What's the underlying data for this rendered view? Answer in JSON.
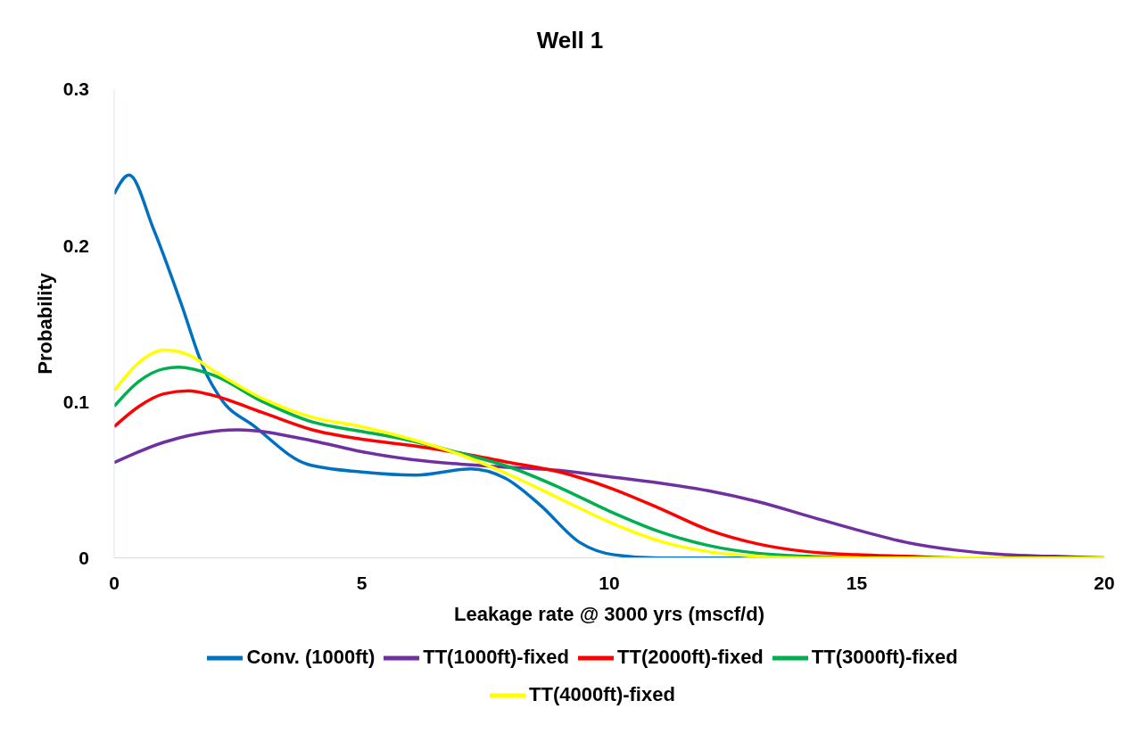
{
  "chart_data": {
    "type": "line",
    "title": "Well 1",
    "xlabel": "Leakage rate @ 3000 yrs  (mscf/d)",
    "ylabel": "Probability",
    "xlim": [
      0,
      20
    ],
    "xticks": [
      0,
      5,
      10,
      15,
      20
    ],
    "ylim": [
      0,
      0.3
    ],
    "yticks": [
      0,
      0.1,
      0.2,
      0.3
    ],
    "grid": false,
    "legend": "bottom",
    "marker": "none",
    "line_style": "solid",
    "series": [
      {
        "name": "Conv. (1000ft)",
        "color": "#0070c0",
        "x": [
          0,
          0.3,
          0.8,
          1.35,
          1.8,
          2.2,
          2.8,
          3.9,
          5,
          6.1,
          7.2,
          7.9,
          8.6,
          9.4,
          10.1,
          11,
          12,
          13
        ],
        "values": [
          0.233,
          0.245,
          0.21,
          0.163,
          0.122,
          0.1,
          0.085,
          0.06,
          0.055,
          0.053,
          0.057,
          0.051,
          0.034,
          0.01,
          0.002,
          0,
          0,
          0
        ]
      },
      {
        "name": "TT(1000ft)-fixed",
        "color": "#7030a0",
        "x": [
          0,
          1,
          2,
          2.5,
          4,
          5,
          6,
          7,
          8,
          9,
          10,
          11,
          12,
          13,
          14,
          15,
          16,
          17,
          18,
          19,
          20
        ],
        "values": [
          0.061,
          0.074,
          0.081,
          0.082,
          0.075,
          0.068,
          0.063,
          0.06,
          0.058,
          0.056,
          0.052,
          0.048,
          0.043,
          0.036,
          0.027,
          0.018,
          0.01,
          0.005,
          0.002,
          0.001,
          0
        ]
      },
      {
        "name": "TT(2000ft)-fixed",
        "color": "#ff0000",
        "x": [
          0,
          0.5,
          1,
          1.5,
          2,
          3,
          4,
          5,
          6,
          7,
          8,
          9,
          10,
          11,
          12,
          13,
          14,
          15,
          16,
          17,
          20
        ],
        "values": [
          0.084,
          0.097,
          0.105,
          0.107,
          0.104,
          0.093,
          0.082,
          0.076,
          0.072,
          0.067,
          0.061,
          0.055,
          0.045,
          0.032,
          0.018,
          0.009,
          0.004,
          0.002,
          0.001,
          0,
          0
        ]
      },
      {
        "name": "TT(3000ft)-fixed",
        "color": "#00b050",
        "x": [
          0,
          0.5,
          1,
          1.3,
          2,
          3,
          4,
          5,
          6,
          7,
          8,
          9,
          10,
          11,
          12,
          13,
          14,
          15,
          20
        ],
        "values": [
          0.097,
          0.113,
          0.121,
          0.122,
          0.117,
          0.1,
          0.087,
          0.081,
          0.075,
          0.067,
          0.058,
          0.045,
          0.03,
          0.017,
          0.008,
          0.003,
          0.001,
          0,
          0
        ]
      },
      {
        "name": "TT(4000ft)-fixed",
        "color": "#ffff00",
        "x": [
          0,
          0.5,
          1,
          1.5,
          2,
          3,
          4,
          5,
          6,
          7,
          8,
          9,
          10,
          11,
          12,
          13,
          14,
          20
        ],
        "values": [
          0.107,
          0.125,
          0.133,
          0.13,
          0.12,
          0.102,
          0.09,
          0.084,
          0.076,
          0.066,
          0.053,
          0.038,
          0.023,
          0.011,
          0.004,
          0.001,
          0,
          0
        ]
      }
    ]
  }
}
